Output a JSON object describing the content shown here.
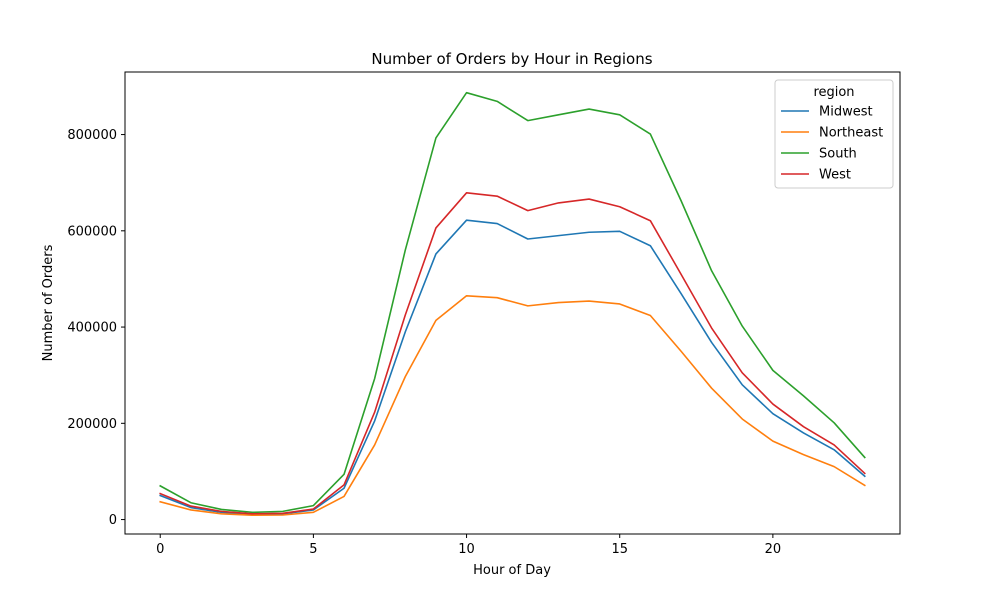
{
  "chart_data": {
    "type": "line",
    "title": "Number of Orders by Hour in Regions",
    "xlabel": "Hour of Day",
    "ylabel": "Number of Orders",
    "xlim": [
      -1.15,
      24.15
    ],
    "ylim": [
      -30000,
      930000
    ],
    "xticks": [
      0,
      5,
      10,
      15,
      20
    ],
    "yticks": [
      0,
      200000,
      400000,
      600000,
      800000
    ],
    "grid": false,
    "legend": {
      "title": "region",
      "position": "top-right"
    },
    "x": [
      0,
      1,
      2,
      3,
      4,
      5,
      6,
      7,
      8,
      9,
      10,
      11,
      12,
      13,
      14,
      15,
      16,
      17,
      18,
      19,
      20,
      21,
      22,
      23
    ],
    "series": [
      {
        "name": "Midwest",
        "color": "#1f77b4",
        "values": [
          50000,
          25000,
          15000,
          10000,
          12000,
          20000,
          65000,
          205000,
          390000,
          552000,
          622000,
          615000,
          583000,
          590000,
          597000,
          599000,
          569000,
          470000,
          368000,
          280000,
          220000,
          180000,
          145000,
          90000
        ]
      },
      {
        "name": "Northeast",
        "color": "#ff7f0e",
        "values": [
          37000,
          20000,
          12000,
          9000,
          9500,
          15000,
          48000,
          155000,
          297000,
          414000,
          465000,
          461000,
          444000,
          451000,
          454000,
          448000,
          424000,
          350000,
          273000,
          209000,
          163000,
          135000,
          110000,
          71000
        ]
      },
      {
        "name": "South",
        "color": "#2ca02c",
        "values": [
          70000,
          35000,
          21000,
          15000,
          17000,
          29000,
          94000,
          293000,
          560000,
          793000,
          887000,
          869000,
          829000,
          841000,
          853000,
          841000,
          801000,
          663000,
          517000,
          402000,
          310000,
          257000,
          201000,
          129000
        ]
      },
      {
        "name": "West",
        "color": "#d62728",
        "values": [
          54000,
          28000,
          17000,
          12000,
          13000,
          22000,
          72000,
          223000,
          425000,
          606000,
          679000,
          672000,
          642000,
          658000,
          666000,
          650000,
          621000,
          510000,
          398000,
          305000,
          240000,
          193000,
          155000,
          96000
        ]
      }
    ]
  }
}
